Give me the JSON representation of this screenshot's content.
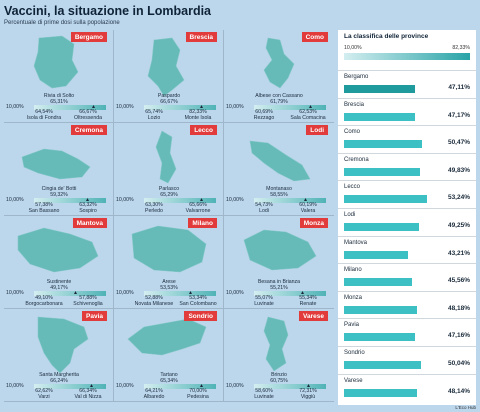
{
  "header": {
    "title": "Vaccini, la situazione in Lombardia",
    "subtitle": "Percentuale di prime dosi sulla popolazione"
  },
  "credit": "L'Eco Hub",
  "colors": {
    "badge": "#e13b3b",
    "map_fill": "#5db7b3",
    "bar_fill": "#3cc0c3",
    "highlight_bar": "#1f9a9d"
  },
  "chart_data": [
    {
      "type": "map",
      "scale_min": "10,00%",
      "provinces": [
        {
          "name": "Bergamo",
          "top": {
            "name": "Rivia di Solto",
            "value": "65,31%"
          },
          "low": {
            "name": "Isola di Fondra",
            "value": "64,54%"
          },
          "high": {
            "name": "Oltressenda",
            "value": "66,67%"
          },
          "marker": 0.8
        },
        {
          "name": "Brescia",
          "top": {
            "name": "Paspardo",
            "value": "66,67%"
          },
          "low": {
            "name": "Lozio",
            "value": "65,74%"
          },
          "high": {
            "name": "Monte Isola",
            "value": "82,33%"
          },
          "marker": 0.78
        },
        {
          "name": "Como",
          "top": {
            "name": "Albese con Cassano",
            "value": "61,79%"
          },
          "low": {
            "name": "Rezzago",
            "value": "60,69%"
          },
          "high": {
            "name": "Sala Comacina",
            "value": "62,53%"
          },
          "marker": 0.76
        },
        {
          "name": "Cremona",
          "top": {
            "name": "Cingia de' Botti",
            "value": "59,32%"
          },
          "low": {
            "name": "San Bassano",
            "value": "57,38%"
          },
          "high": {
            "name": "Sospiro",
            "value": "63,32%"
          },
          "marker": 0.72
        },
        {
          "name": "Lecco",
          "top": {
            "name": "Parlasco",
            "value": "65,29%"
          },
          "low": {
            "name": "Perledo",
            "value": "63,30%"
          },
          "high": {
            "name": "Valvarrone",
            "value": "65,66%"
          },
          "marker": 0.78
        },
        {
          "name": "Lodi",
          "top": {
            "name": "Montanaso",
            "value": "58,55%"
          },
          "low": {
            "name": "Lodi",
            "value": "54,73%"
          },
          "high": {
            "name": "Valera",
            "value": "60,19%"
          },
          "marker": 0.7
        },
        {
          "name": "Mantova",
          "top": {
            "name": "Sustinente",
            "value": "49,17%"
          },
          "low": {
            "name": "Borgocarbonara",
            "value": "49,10%"
          },
          "high": {
            "name": "Schivenoglia",
            "value": "57,88%"
          },
          "marker": 0.55
        },
        {
          "name": "Milano",
          "top": {
            "name": "Arese",
            "value": "53,53%"
          },
          "low": {
            "name": "Novata Milanese",
            "value": "52,88%"
          },
          "high": {
            "name": "San Colombano",
            "value": "53,34%"
          },
          "marker": 0.62
        },
        {
          "name": "Monza",
          "top": {
            "name": "Besana in Brianza",
            "value": "55,21%"
          },
          "low": {
            "name": "Luvinate",
            "value": "55,07%"
          },
          "high": {
            "name": "Renate",
            "value": "55,34%"
          },
          "marker": 0.65
        },
        {
          "name": "Pavia",
          "top": {
            "name": "Santa Margherita",
            "value": "66,24%"
          },
          "low": {
            "name": "Varzi",
            "value": "62,62%"
          },
          "high": {
            "name": "Val di Nizza",
            "value": "66,34%"
          },
          "marker": 0.78
        },
        {
          "name": "Sondrio",
          "top": {
            "name": "Tartano",
            "value": "65,34%"
          },
          "low": {
            "name": "Albaredo",
            "value": "64,21%"
          },
          "high": {
            "name": "Pedesina",
            "value": "70,00%"
          },
          "marker": 0.78
        },
        {
          "name": "Varese",
          "top": {
            "name": "Brinzio",
            "value": "60,75%"
          },
          "low": {
            "name": "Luvinate",
            "value": "58,60%"
          },
          "high": {
            "name": "Viggiù",
            "value": "72,31%"
          },
          "marker": 0.74
        }
      ]
    },
    {
      "type": "bar",
      "title": "La classifica delle province",
      "scale_min": "10,00%",
      "scale_max": "82,33%",
      "xlim": [
        10,
        82.33
      ],
      "categories": [
        "Bergamo",
        "Brescia",
        "Como",
        "Cremona",
        "Lecco",
        "Lodi",
        "Mantova",
        "Milano",
        "Monza",
        "Pavia",
        "Sondrio",
        "Varese"
      ],
      "values": [
        47.11,
        47.17,
        50.47,
        49.83,
        53.24,
        49.25,
        43.21,
        45.56,
        48.18,
        47.16,
        50.04,
        48.14
      ],
      "labels": [
        "47,11%",
        "47,17%",
        "50,47%",
        "49,83%",
        "53,24%",
        "49,25%",
        "43,21%",
        "45,56%",
        "48,18%",
        "47,16%",
        "50,04%",
        "48,14%"
      ]
    }
  ]
}
